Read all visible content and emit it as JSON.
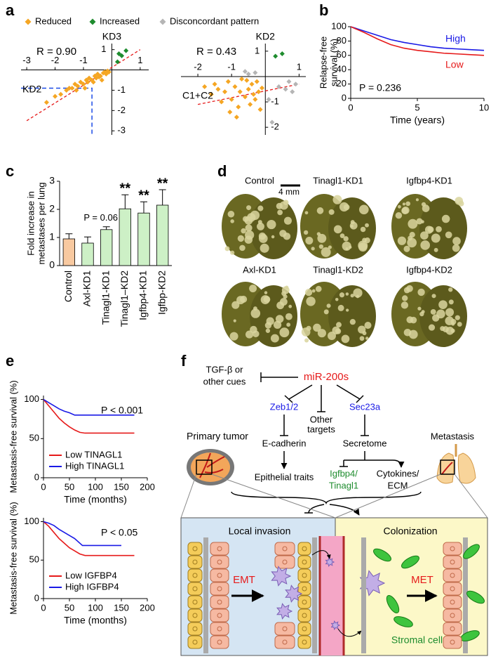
{
  "panel_labels": [
    "a",
    "b",
    "c",
    "d",
    "e",
    "f"
  ],
  "chart_data": [
    {
      "type": "scatter",
      "legend": [
        {
          "name": "Reduced",
          "color": "#f5a623"
        },
        {
          "name": "Increased",
          "color": "#1e8c2e"
        },
        {
          "name": "Disconcordant pattern",
          "color": "#b5b5b5"
        }
      ],
      "plots": [
        {
          "annotation": "R = 0.90",
          "xlabel": "KD2",
          "ylabel": "KD3",
          "xlim": [
            -3.2,
            1.3
          ],
          "ylim": [
            -3.2,
            1.3
          ],
          "xticks": [
            -3,
            -2,
            -1,
            1
          ],
          "yticks": [
            1,
            -1,
            -2,
            -3
          ],
          "trendline": {
            "x": [
              -3,
              1
            ],
            "y": [
              -2.5,
              1.0
            ]
          },
          "reference": {
            "x": -0.7,
            "y": -0.9
          },
          "series": [
            {
              "x": [
                -2.3,
                -2.0,
                -1.8,
                -1.6,
                -1.5,
                -1.4,
                -1.3,
                -1.2,
                -1.1,
                -1.0,
                -0.9,
                -0.85,
                -0.8,
                -0.7,
                -0.6,
                -0.55,
                -0.5,
                -0.45,
                -0.4,
                -0.3,
                -0.25,
                -0.2,
                -0.15,
                -0.1,
                -1.25,
                -0.95,
                -0.65,
                -0.35
              ],
              "y": [
                -1.6,
                -1.3,
                -1.2,
                -1.0,
                -0.9,
                -0.9,
                -0.7,
                -0.8,
                -0.6,
                -0.7,
                -0.5,
                -0.6,
                -0.4,
                -0.5,
                -0.3,
                -0.4,
                -0.2,
                -0.35,
                -0.3,
                -0.15,
                -0.1,
                -0.2,
                -0.05,
                -0.1,
                -1.0,
                -0.9,
                -0.6,
                -0.5
              ]
            },
            {
              "x": [
                0.2,
                0.35,
                0.5,
                0.25
              ],
              "y": [
                0.4,
                0.7,
                0.95,
                0.8
              ]
            }
          ]
        },
        {
          "annotation": "R = 0.43",
          "xlabel": "C1+C2",
          "ylabel": "KD2",
          "xlim": [
            -2.5,
            1.2
          ],
          "ylim": [
            -2.3,
            1.3
          ],
          "xticks": [
            -2,
            -1,
            1
          ],
          "yticks": [
            1,
            -1,
            -2
          ],
          "trendline": {
            "x": [
              -2,
              1
            ],
            "y": [
              -1.1,
              -0.3
            ]
          },
          "series": [
            {
              "x": [
                -1.8,
                -1.6,
                -1.5,
                -1.4,
                -1.3,
                -1.2,
                -1.1,
                -1.0,
                -0.9,
                -0.8,
                -0.75,
                -0.7,
                -0.6,
                -0.5,
                -0.45,
                -0.4,
                -0.3,
                -0.25,
                -0.2,
                -0.15,
                -1.05,
                -0.85,
                -0.55,
                -0.35,
                -0.1
              ],
              "y": [
                -0.4,
                -0.7,
                -0.3,
                -0.5,
                -1.0,
                -0.6,
                -0.2,
                -0.9,
                -0.4,
                -1.2,
                -0.6,
                -0.1,
                -0.8,
                -0.5,
                -1.1,
                -0.3,
                -0.9,
                -0.2,
                -0.6,
                -1.3,
                -1.4,
                -1.6,
                -0.15,
                -0.7,
                -0.45
              ]
            },
            {
              "x": [
                0.3,
                0.5
              ],
              "y": [
                0.8,
                0.9
              ]
            },
            {
              "x": [
                -0.5,
                -0.3,
                0.4,
                0.6,
                0.7,
                0.8,
                0.9,
                0.2,
                0.1,
                -0.6
              ],
              "y": [
                0.1,
                0.15,
                -0.4,
                -0.5,
                -0.2,
                -0.6,
                -0.3,
                -1.8,
                -0.9,
                0.2
              ]
            }
          ]
        }
      ]
    },
    {
      "type": "line",
      "xlabel": "Time (years)",
      "ylabel": [
        "Relapse-free",
        "survival (%)"
      ],
      "annotation": "P = 0.236",
      "xlim": [
        0,
        10
      ],
      "ylim": [
        0,
        100
      ],
      "xticks": [
        0,
        5,
        10
      ],
      "yticks": [
        0,
        20,
        40,
        60,
        80,
        100
      ],
      "legend": "inline",
      "series": [
        {
          "name": "High",
          "color": "#1a1ae6",
          "x": [
            0,
            1,
            2,
            3,
            4,
            5,
            6,
            7,
            8,
            9,
            10
          ],
          "values": [
            100,
            94,
            88,
            82,
            78,
            75,
            72,
            70,
            69,
            68,
            67
          ]
        },
        {
          "name": "Low",
          "color": "#e61a1a",
          "x": [
            0,
            1,
            2,
            3,
            4,
            5,
            6,
            7,
            8,
            9,
            10
          ],
          "values": [
            100,
            92,
            83,
            75,
            70,
            67,
            65,
            63,
            62,
            61,
            60
          ]
        }
      ]
    },
    {
      "type": "bar",
      "ylabel": [
        "Fold increase in",
        "metastases per lung"
      ],
      "categories": [
        "Control",
        "Axl-KD1",
        "Tinagl1-KD1",
        "Tinagl1–KD2",
        "Igfbp4-KD1",
        "Igfbp-KD2"
      ],
      "values": [
        0.95,
        0.8,
        1.28,
        2.02,
        1.87,
        2.15
      ],
      "errors": [
        0.18,
        0.22,
        0.1,
        0.5,
        0.4,
        0.55
      ],
      "colors": [
        "#f8c9a0",
        "#cdf0c6",
        "#cdf0c6",
        "#cdf0c6",
        "#cdf0c6",
        "#cdf0c6"
      ],
      "significance": [
        null,
        null,
        "P = 0.06",
        "**",
        "**",
        "**"
      ],
      "ylim": [
        0,
        3
      ],
      "yticks": [
        0,
        1,
        2,
        3
      ]
    },
    {
      "type": "line",
      "xlabel": "Time (months)",
      "ylabel": "Metastasis-free survival (%)",
      "annotation": "P < 0.001",
      "xlim": [
        0,
        200
      ],
      "ylim": [
        0,
        105
      ],
      "xticks": [
        0,
        50,
        100,
        150,
        200
      ],
      "yticks": [
        0,
        50,
        100
      ],
      "legend": "lower left",
      "series": [
        {
          "name": "Low TINAGL1",
          "color": "#e61a1a",
          "x": [
            0,
            10,
            20,
            30,
            40,
            50,
            60,
            70,
            80,
            175
          ],
          "values": [
            100,
            92,
            84,
            76,
            70,
            65,
            61,
            58,
            57,
            57
          ]
        },
        {
          "name": "High TINAGL1",
          "color": "#1a1ae6",
          "x": [
            0,
            10,
            20,
            30,
            40,
            50,
            60,
            175
          ],
          "values": [
            100,
            96,
            92,
            88,
            85,
            83,
            80,
            80
          ]
        }
      ]
    },
    {
      "type": "line",
      "xlabel": "Time (months)",
      "ylabel": "Metastasis-free survival (%)",
      "annotation": "P < 0.05",
      "xlim": [
        0,
        200
      ],
      "ylim": [
        0,
        105
      ],
      "xticks": [
        0,
        50,
        100,
        150,
        200
      ],
      "yticks": [
        0,
        50,
        100
      ],
      "legend": "lower left",
      "series": [
        {
          "name": "Low IGFBP4",
          "color": "#e61a1a",
          "x": [
            0,
            10,
            20,
            30,
            40,
            50,
            60,
            70,
            80,
            175
          ],
          "values": [
            100,
            94,
            86,
            78,
            72,
            66,
            62,
            58,
            56,
            56
          ]
        },
        {
          "name": "High IGFBP4",
          "color": "#1a1ae6",
          "x": [
            0,
            10,
            20,
            30,
            40,
            50,
            60,
            75,
            150
          ],
          "values": [
            100,
            98,
            95,
            90,
            86,
            82,
            78,
            69,
            69
          ]
        }
      ]
    }
  ],
  "photos": {
    "labels": [
      "Control",
      "Tinagl1-KD1",
      "Igfbp4-KD1",
      "Axl-KD1",
      "Tinagl1-KD2",
      "Igfbp4-KD2"
    ],
    "scale_bar": "4 mm"
  },
  "diagram": {
    "tgf": [
      "TGF-β or",
      "other cues"
    ],
    "mir": "miR-200s",
    "zeb": "Zeb1/2",
    "other": [
      "Other",
      "targets"
    ],
    "sec": "Sec23a",
    "ecad": "E-cadherin",
    "secretome": "Secretome",
    "epi": "Epithelial traits",
    "igf": [
      "Igfbp4/",
      "Tinagl1"
    ],
    "cyto": [
      "Cytokines/",
      "ECM"
    ],
    "primary": "Primary tumor",
    "metastasis": "Metastasis",
    "invasion": "Local invasion",
    "colonization": "Colonization",
    "emt": "EMT",
    "met": "MET",
    "stromal": "Stromal cells"
  }
}
